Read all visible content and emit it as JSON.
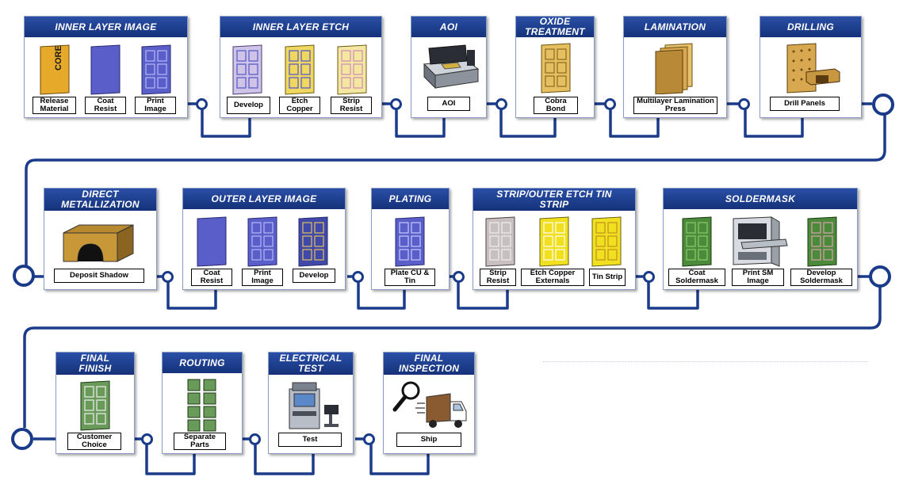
{
  "colors": {
    "line": "#1a3a8a",
    "header": "#1f3f90",
    "header_text": "#ffffff"
  },
  "stages": {
    "inner_layer_image": {
      "title": "INNER LAYER IMAGE",
      "steps": [
        "Release Material",
        "Coat Resist",
        "Print Image"
      ],
      "core_text": "CORE"
    },
    "inner_layer_etch": {
      "title": "INNER LAYER ETCH",
      "steps": [
        "Develop",
        "Etch Copper",
        "Strip Resist"
      ]
    },
    "aoi": {
      "title": "AOI",
      "steps": [
        "AOI"
      ]
    },
    "oxide_treatment": {
      "title": "OXIDE TREATMENT",
      "steps": [
        "Cobra Bond"
      ]
    },
    "lamination": {
      "title": "LAMINATION",
      "steps": [
        "Multilayer Lamination Press"
      ]
    },
    "drilling": {
      "title": "DRILLING",
      "steps": [
        "Drill Panels"
      ]
    },
    "direct_metallization": {
      "title": "DIRECT METALLIZATION",
      "steps": [
        "Deposit Shadow"
      ]
    },
    "outer_layer_image": {
      "title": "OUTER LAYER IMAGE",
      "steps": [
        "Coat Resist",
        "Print Image",
        "Develop"
      ]
    },
    "plating": {
      "title": "PLATING",
      "steps": [
        "Plate CU & Tin"
      ]
    },
    "strip_outer_etch": {
      "title": "STRIP/OUTER ETCH TIN STRIP",
      "steps": [
        "Strip Resist",
        "Etch Copper Externals",
        "Tin Strip"
      ]
    },
    "soldermask": {
      "title": "SOLDERMASK",
      "steps": [
        "Coat Soldermask",
        "Print SM Image",
        "Develop Soldermask"
      ]
    },
    "final_finish": {
      "title": "FINAL FINISH",
      "steps": [
        "Customer Choice"
      ]
    },
    "routing": {
      "title": "ROUTING",
      "steps": [
        "Separate Parts"
      ]
    },
    "electrical_test": {
      "title": "ELECTRICAL TEST",
      "steps": [
        "Test"
      ]
    },
    "final_inspection": {
      "title": "FINAL INSPECTION",
      "steps": [
        "Ship"
      ]
    }
  }
}
